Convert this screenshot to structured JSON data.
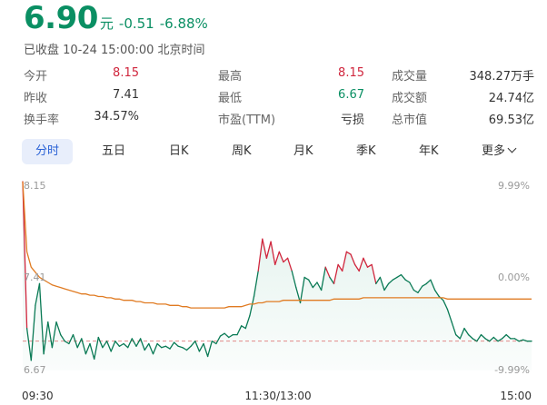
{
  "quote": {
    "price": "6.90",
    "unit": "元",
    "change": "-0.51",
    "change_pct": "-6.88%",
    "status": "已收盘 10-24 15:00:00 北京时间"
  },
  "stats": [
    [
      {
        "label": "今开",
        "value": "8.15",
        "color": "red"
      },
      {
        "label": "最高",
        "value": "8.15",
        "color": "red"
      },
      {
        "label": "成交量",
        "value": "348.27万手",
        "color": ""
      }
    ],
    [
      {
        "label": "昨收",
        "value": "7.41",
        "color": ""
      },
      {
        "label": "最低",
        "value": "6.67",
        "color": "green"
      },
      {
        "label": "成交额",
        "value": "24.74亿",
        "color": ""
      }
    ],
    [
      {
        "label": "换手率",
        "value": "34.57%",
        "color": ""
      },
      {
        "label": "市盈(TTM)",
        "value": "亏损",
        "color": ""
      },
      {
        "label": "总市值",
        "value": "69.53亿",
        "color": ""
      }
    ]
  ],
  "tabs": [
    "分时",
    "五日",
    "日K",
    "周K",
    "月K",
    "季K",
    "年K",
    "更多"
  ],
  "chart_data": {
    "type": "line",
    "ylim": [
      6.67,
      8.15
    ],
    "y_left_ticks": [
      "8.15",
      "7.41",
      "6.67"
    ],
    "y_right_ticks": [
      "9.99%",
      "0.00%",
      "-9.99%"
    ],
    "x_ticks": [
      "09:30",
      "11:30/13:00",
      "15:00"
    ],
    "prev_close": 7.41,
    "close_reference": 6.9,
    "series": [
      {
        "values": [
          8.15,
          7.0,
          6.75,
          7.18,
          7.35,
          6.8,
          7.05,
          6.85,
          7.05,
          6.95,
          6.9,
          6.88,
          6.95,
          6.85,
          6.92,
          6.8,
          6.88,
          6.76,
          6.93,
          6.85,
          6.9,
          6.82,
          6.9,
          6.86,
          6.88,
          6.85,
          6.92,
          6.86,
          6.92,
          6.83,
          6.88,
          6.8,
          6.88,
          6.85,
          6.86,
          6.84,
          6.89,
          6.86,
          6.85,
          6.83,
          6.86,
          6.9,
          6.82,
          6.88,
          6.78,
          6.9,
          6.88,
          6.94,
          6.96,
          6.93,
          6.95,
          6.95,
          7.02,
          7.0,
          7.1,
          7.25,
          7.45,
          7.7,
          7.55,
          7.68,
          7.5,
          7.6,
          7.52,
          7.55,
          7.45,
          7.32,
          7.2,
          7.4,
          7.38,
          7.32,
          7.36,
          7.3,
          7.48,
          7.4,
          7.35,
          7.5,
          7.45,
          7.6,
          7.58,
          7.5,
          7.45,
          7.55,
          7.48,
          7.5,
          7.35,
          7.4,
          7.3,
          7.35,
          7.38,
          7.4,
          7.42,
          7.38,
          7.36,
          7.3,
          7.28,
          7.33,
          7.35,
          7.38,
          7.3,
          7.25,
          7.22,
          7.15,
          7.05,
          6.95,
          6.92,
          7.0,
          6.95,
          6.92,
          6.9,
          6.95,
          6.92,
          6.9,
          6.93,
          6.9,
          6.92,
          6.95,
          6.92,
          6.92,
          6.9,
          6.91,
          6.9,
          6.9
        ]
      },
      {
        "values": [
          8.15,
          7.6,
          7.48,
          7.44,
          7.4,
          7.38,
          7.36,
          7.34,
          7.33,
          7.32,
          7.31,
          7.3,
          7.29,
          7.28,
          7.27,
          7.27,
          7.26,
          7.26,
          7.25,
          7.25,
          7.24,
          7.24,
          7.23,
          7.23,
          7.22,
          7.22,
          7.22,
          7.21,
          7.21,
          7.2,
          7.2,
          7.2,
          7.19,
          7.19,
          7.19,
          7.18,
          7.18,
          7.18,
          7.17,
          7.17,
          7.16,
          7.16,
          7.16,
          7.16,
          7.16,
          7.16,
          7.16,
          7.16,
          7.16,
          7.17,
          7.17,
          7.17,
          7.17,
          7.18,
          7.19,
          7.19,
          7.2,
          7.2,
          7.21,
          7.21,
          7.21,
          7.21,
          7.22,
          7.22,
          7.22,
          7.22,
          7.22,
          7.22,
          7.22,
          7.22,
          7.22,
          7.22,
          7.22,
          7.22,
          7.23,
          7.23,
          7.23,
          7.23,
          7.23,
          7.23,
          7.23,
          7.24,
          7.24,
          7.24,
          7.24,
          7.24,
          7.24,
          7.24,
          7.24,
          7.24,
          7.24,
          7.24,
          7.24,
          7.24,
          7.24,
          7.24,
          7.24,
          7.24,
          7.24,
          7.24,
          7.24,
          7.23,
          7.23,
          7.23,
          7.23,
          7.23,
          7.23,
          7.23,
          7.23,
          7.23,
          7.23,
          7.23,
          7.23,
          7.23,
          7.23,
          7.23,
          7.23,
          7.23,
          7.23,
          7.23,
          7.23,
          7.23
        ]
      }
    ],
    "colors": {
      "up": "#d0263d",
      "down": "#0a7a55",
      "avg": "#e07b22",
      "ref": "#e28a8a",
      "fill": "#0a8f63"
    }
  }
}
